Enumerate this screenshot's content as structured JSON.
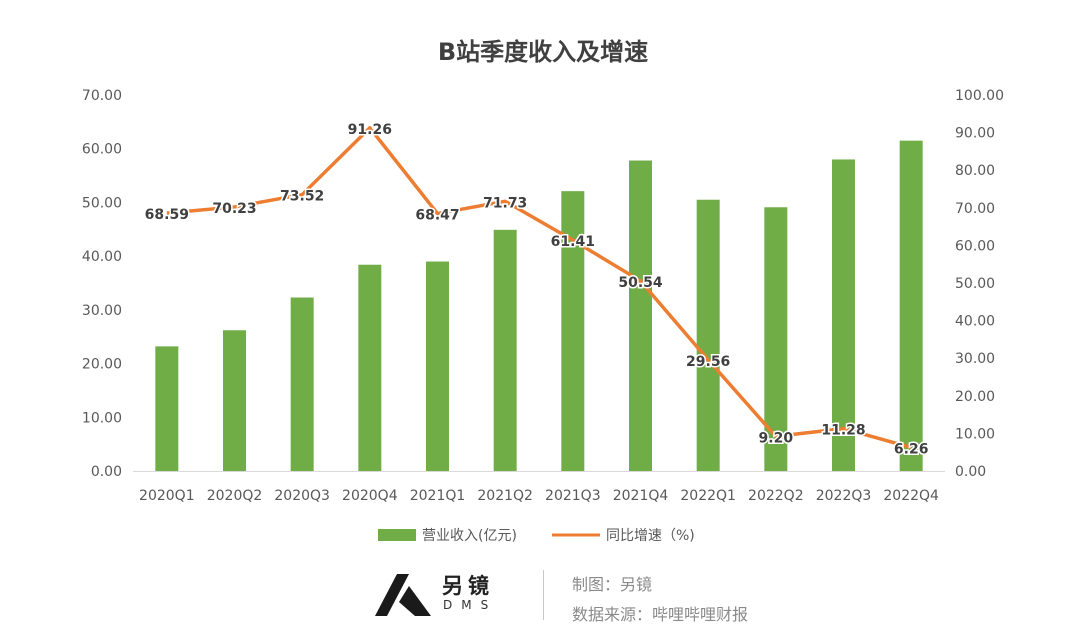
{
  "chart_data": {
    "type": "bar",
    "title": "B站季度收入及增速",
    "categories": [
      "2020Q1",
      "2020Q2",
      "2020Q3",
      "2020Q4",
      "2021Q1",
      "2021Q2",
      "2021Q3",
      "2021Q4",
      "2022Q1",
      "2022Q2",
      "2022Q3",
      "2022Q4"
    ],
    "series": [
      {
        "name": "营业收入(亿元)",
        "type": "bar",
        "axis": "left",
        "color": "#70ad47",
        "values": [
          23.2,
          26.2,
          32.3,
          38.4,
          39.0,
          44.9,
          52.1,
          57.8,
          50.5,
          49.1,
          58.0,
          61.5
        ]
      },
      {
        "name": "同比增速（%)",
        "type": "line",
        "axis": "right",
        "color": "#ed7d31",
        "values": [
          68.59,
          70.23,
          73.52,
          91.26,
          68.47,
          71.73,
          61.41,
          50.54,
          29.56,
          9.2,
          11.28,
          6.26
        ],
        "labels": [
          "68.59",
          "70.23",
          "73.52",
          "91.26",
          "68.47",
          "71.73",
          "61.41",
          "50.54",
          "29.56",
          "9.20",
          "11.28",
          "6.26"
        ]
      }
    ],
    "y_left": {
      "min": 0,
      "max": 70,
      "step": 10,
      "ticks": [
        "0.00",
        "10.00",
        "20.00",
        "30.00",
        "40.00",
        "50.00",
        "60.00",
        "70.00"
      ]
    },
    "y_right": {
      "min": 0,
      "max": 100,
      "step": 10,
      "ticks": [
        "0.00",
        "10.00",
        "20.00",
        "30.00",
        "40.00",
        "50.00",
        "60.00",
        "70.00",
        "80.00",
        "90.00",
        "100.00"
      ]
    },
    "grid": false,
    "legend_position": "bottom"
  },
  "footer": {
    "brand_name": "另镜",
    "brand_sub": "DMS",
    "maker": "制图：另镜",
    "source": "数据来源：哔哩哔哩财报"
  },
  "colors": {
    "axis_text": "#595959",
    "title": "#404040",
    "label": "#404040"
  }
}
